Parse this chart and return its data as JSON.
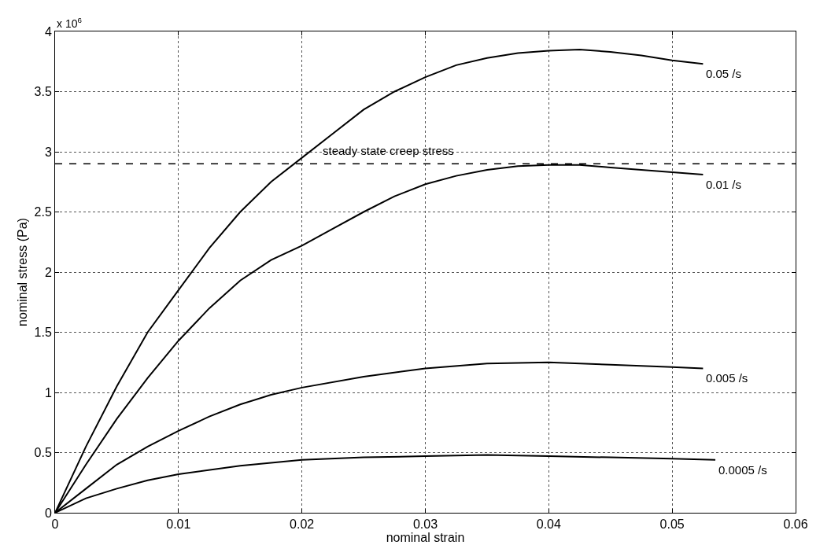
{
  "chart_data": {
    "type": "line",
    "xlabel": "nominal strain",
    "ylabel": "nominal stress (Pa)",
    "annotations": [
      "x 10$^{6}$"
    ],
    "xlim": [
      0,
      0.06
    ],
    "xticks": [
      0,
      0.01,
      0.02,
      0.03,
      0.04,
      0.05,
      0.06
    ],
    "ylim": [
      0,
      4
    ],
    "yticks": [
      0,
      0.5,
      1,
      1.5,
      2,
      2.5,
      3,
      3.5,
      4
    ],
    "grid": true,
    "marker": "none",
    "line_style": "solid",
    "legend": false,
    "ref_lines": [
      {
        "axis": "y",
        "value": 2.9,
        "label": "steady state creep stress",
        "line_style": "dashed",
        "color": "#000000"
      }
    ],
    "series": [
      {
        "name": "0.05 /s",
        "color": "#000000",
        "x": [
          0,
          0.0025,
          0.005,
          0.0075,
          0.01,
          0.0125,
          0.015,
          0.0175,
          0.02,
          0.0225,
          0.025,
          0.0275,
          0.03,
          0.0325,
          0.035,
          0.0375,
          0.04,
          0.0425,
          0.045,
          0.0475,
          0.05,
          0.0525
        ],
        "values": [
          0,
          0.55,
          1.05,
          1.5,
          1.85,
          2.2,
          2.5,
          2.75,
          2.95,
          3.15,
          3.35,
          3.5,
          3.62,
          3.72,
          3.78,
          3.82,
          3.84,
          3.85,
          3.83,
          3.8,
          3.76,
          3.73
        ]
      },
      {
        "name": "0.01 /s",
        "color": "#000000",
        "x": [
          0,
          0.0025,
          0.005,
          0.0075,
          0.01,
          0.0125,
          0.015,
          0.0175,
          0.02,
          0.0225,
          0.025,
          0.0275,
          0.03,
          0.0325,
          0.035,
          0.0375,
          0.04,
          0.0425,
          0.045,
          0.0475,
          0.05,
          0.0525
        ],
        "values": [
          0,
          0.4,
          0.78,
          1.12,
          1.43,
          1.7,
          1.93,
          2.1,
          2.22,
          2.36,
          2.5,
          2.63,
          2.73,
          2.8,
          2.85,
          2.88,
          2.89,
          2.89,
          2.87,
          2.85,
          2.83,
          2.81
        ]
      },
      {
        "name": "0.005 /s",
        "color": "#000000",
        "x": [
          0,
          0.0025,
          0.005,
          0.0075,
          0.01,
          0.0125,
          0.015,
          0.0175,
          0.02,
          0.025,
          0.03,
          0.035,
          0.04,
          0.045,
          0.05,
          0.0525
        ],
        "values": [
          0,
          0.2,
          0.4,
          0.55,
          0.68,
          0.8,
          0.9,
          0.98,
          1.04,
          1.13,
          1.2,
          1.24,
          1.25,
          1.23,
          1.21,
          1.2
        ]
      },
      {
        "name": "0.0005 /s",
        "color": "#000000",
        "x": [
          0,
          0.0025,
          0.005,
          0.0075,
          0.01,
          0.015,
          0.02,
          0.025,
          0.03,
          0.035,
          0.04,
          0.045,
          0.05,
          0.0535
        ],
        "values": [
          0,
          0.12,
          0.2,
          0.27,
          0.32,
          0.39,
          0.44,
          0.46,
          0.47,
          0.48,
          0.47,
          0.46,
          0.45,
          0.44
        ]
      }
    ]
  }
}
